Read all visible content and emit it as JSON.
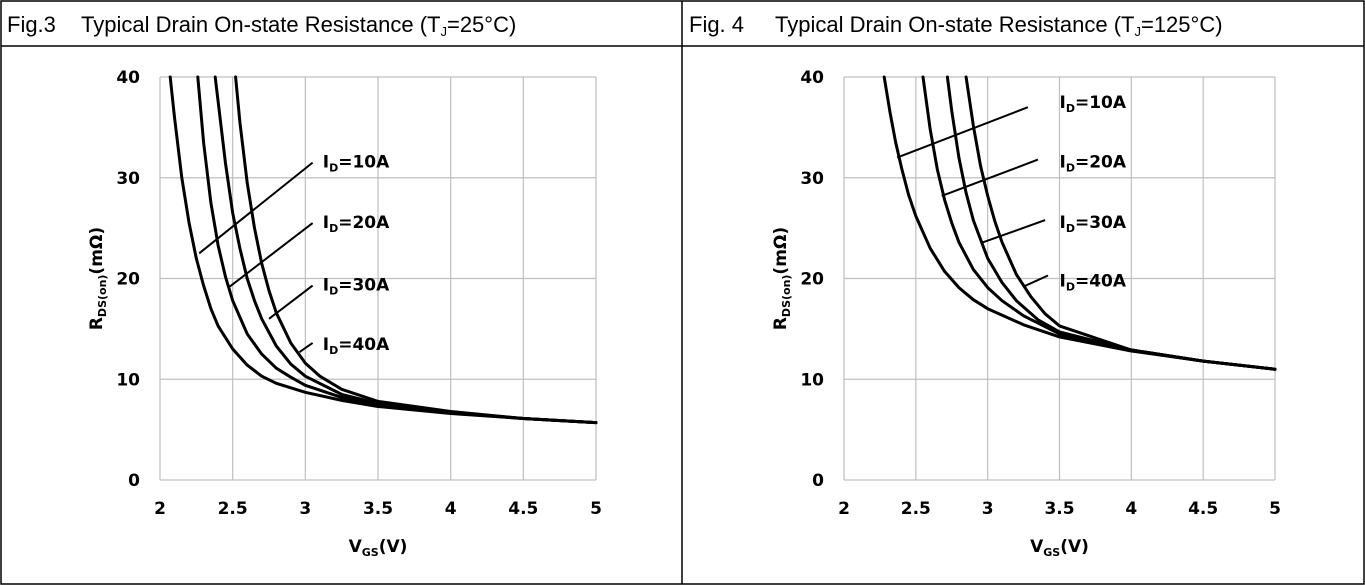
{
  "chart_data": [
    {
      "type": "line",
      "title": "Typical Drain On-state Resistance (T",
      "title_sub": "J",
      "title_tail": "=25°C)",
      "fig_label": "Fig.3",
      "xlabel": "V",
      "xlabel_sub": "GS",
      "xlabel_tail": "(V)",
      "ylabel": "R",
      "ylabel_sub": "DS(on)",
      "ylabel_tail": "(mΩ)",
      "xlim": [
        2,
        5
      ],
      "ylim": [
        0,
        40
      ],
      "x_ticks": [
        "2",
        "2.5",
        "3",
        "3.5",
        "4",
        "4.5",
        "5"
      ],
      "y_ticks": [
        "0",
        "10",
        "20",
        "30",
        "40"
      ],
      "grid": true,
      "line_color": "#000000",
      "grid_color": "#bfbfbf",
      "series": [
        {
          "name": "I_D=10A",
          "label": "I",
          "label_sub": "D",
          "label_tail": "=10A",
          "x": [
            2.07,
            2.1,
            2.15,
            2.2,
            2.25,
            2.3,
            2.35,
            2.4,
            2.5,
            2.6,
            2.7,
            2.8,
            3.0,
            3.25,
            3.5,
            4.0,
            4.5,
            5.0
          ],
          "y": [
            40,
            36,
            30,
            25.5,
            22,
            19.3,
            17,
            15.3,
            13,
            11.4,
            10.3,
            9.6,
            8.7,
            7.9,
            7.3,
            6.6,
            6.1,
            5.7
          ]
        },
        {
          "name": "I_D=20A",
          "label": "I",
          "label_sub": "D",
          "label_tail": "=20A",
          "x": [
            2.26,
            2.3,
            2.35,
            2.4,
            2.45,
            2.5,
            2.6,
            2.7,
            2.8,
            2.9,
            3.0,
            3.25,
            3.5,
            4.0,
            4.5,
            5.0
          ],
          "y": [
            40,
            33.5,
            27.5,
            23.3,
            20.2,
            17.8,
            14.5,
            12.5,
            11.1,
            10.2,
            9.4,
            8.2,
            7.5,
            6.7,
            6.1,
            5.7
          ]
        },
        {
          "name": "I_D=30A",
          "label": "I",
          "label_sub": "D",
          "label_tail": "=30A",
          "x": [
            2.38,
            2.45,
            2.5,
            2.55,
            2.6,
            2.65,
            2.7,
            2.8,
            2.9,
            3.0,
            3.25,
            3.5,
            4.0,
            4.5,
            5.0
          ],
          "y": [
            40,
            31.5,
            26.5,
            23,
            20,
            17.8,
            16,
            13.3,
            11.5,
            10.3,
            8.5,
            7.6,
            6.7,
            6.1,
            5.7
          ]
        },
        {
          "name": "I_D=40A",
          "label": "I",
          "label_sub": "D",
          "label_tail": "=40A",
          "x": [
            2.52,
            2.55,
            2.6,
            2.65,
            2.7,
            2.75,
            2.8,
            2.9,
            3.0,
            3.1,
            3.25,
            3.5,
            4.0,
            4.5,
            5.0
          ],
          "y": [
            40,
            35.5,
            29.5,
            25,
            21.5,
            18.8,
            16.6,
            13.6,
            11.6,
            10.3,
            9.0,
            7.8,
            6.8,
            6.1,
            5.7
          ]
        }
      ],
      "annotations": [
        {
          "series": 0,
          "line_from": [
            2.27,
            22.5
          ],
          "line_to": [
            3.05,
            31.5
          ],
          "label_at": [
            3.12,
            31.6
          ]
        },
        {
          "series": 1,
          "line_from": [
            2.48,
            19.2
          ],
          "line_to": [
            3.05,
            25.5
          ],
          "label_at": [
            3.12,
            25.6
          ]
        },
        {
          "series": 2,
          "line_from": [
            2.75,
            16.0
          ],
          "line_to": [
            3.05,
            19.3
          ],
          "label_at": [
            3.12,
            19.4
          ]
        },
        {
          "series": 3,
          "line_from": [
            2.96,
            12.7
          ],
          "line_to": [
            3.05,
            13.6
          ],
          "label_at": [
            3.12,
            13.5
          ]
        }
      ]
    },
    {
      "type": "line",
      "title": "Typical Drain On-state Resistance (T",
      "title_sub": "J",
      "title_tail": "=125°C)",
      "fig_label": "Fig. 4",
      "xlabel": "V",
      "xlabel_sub": "GS",
      "xlabel_tail": "(V)",
      "ylabel": "R",
      "ylabel_sub": "DS(on)",
      "ylabel_tail": "(mΩ)",
      "xlim": [
        2,
        5
      ],
      "ylim": [
        0,
        40
      ],
      "x_ticks": [
        "2",
        "2.5",
        "3",
        "3.5",
        "4",
        "4.5",
        "5"
      ],
      "y_ticks": [
        "0",
        "10",
        "20",
        "30",
        "40"
      ],
      "grid": true,
      "line_color": "#000000",
      "grid_color": "#bfbfbf",
      "series": [
        {
          "name": "I_D=10A",
          "label": "I",
          "label_sub": "D",
          "label_tail": "=10A",
          "x": [
            2.28,
            2.32,
            2.36,
            2.4,
            2.45,
            2.5,
            2.6,
            2.7,
            2.8,
            2.9,
            3.0,
            3.25,
            3.5,
            4.0,
            4.5,
            5.0
          ],
          "y": [
            40,
            36.5,
            33.5,
            31,
            28.3,
            26.2,
            23,
            20.7,
            19.1,
            17.9,
            17,
            15.4,
            14.2,
            12.8,
            11.8,
            11
          ]
        },
        {
          "name": "I_D=20A",
          "label": "I",
          "label_sub": "D",
          "label_tail": "=20A",
          "x": [
            2.55,
            2.6,
            2.65,
            2.7,
            2.75,
            2.8,
            2.9,
            3.0,
            3.1,
            3.25,
            3.5,
            4.0,
            4.5,
            5.0
          ],
          "y": [
            40,
            34.8,
            30.8,
            27.8,
            25.5,
            23.6,
            20.9,
            19.1,
            17.8,
            16.3,
            14.5,
            12.9,
            11.8,
            11
          ]
        },
        {
          "name": "I_D=30A",
          "label": "I",
          "label_sub": "D",
          "label_tail": "=30A",
          "x": [
            2.72,
            2.75,
            2.8,
            2.85,
            2.9,
            3.0,
            3.1,
            3.2,
            3.35,
            3.5,
            4.0,
            4.5,
            5.0
          ],
          "y": [
            40,
            36.6,
            32,
            28.5,
            25.8,
            22,
            19.6,
            17.8,
            15.9,
            14.7,
            12.9,
            11.8,
            11
          ]
        },
        {
          "name": "I_D=40A",
          "label": "I",
          "label_sub": "D",
          "label_tail": "=40A",
          "x": [
            2.85,
            2.9,
            2.95,
            3.0,
            3.05,
            3.1,
            3.2,
            3.3,
            3.4,
            3.5,
            4.0,
            4.5,
            5.0
          ],
          "y": [
            40,
            35.2,
            31.2,
            28.2,
            25.7,
            23.6,
            20.4,
            18.2,
            16.5,
            15.3,
            12.9,
            11.8,
            11
          ]
        }
      ],
      "annotations": [
        {
          "series": 0,
          "line_from": [
            2.37,
            32.0
          ],
          "line_to": [
            3.28,
            37.0
          ],
          "label_at": [
            3.5,
            37.5
          ]
        },
        {
          "series": 1,
          "line_from": [
            2.68,
            28.2
          ],
          "line_to": [
            3.35,
            31.8
          ],
          "label_at": [
            3.5,
            31.6
          ]
        },
        {
          "series": 2,
          "line_from": [
            2.95,
            23.5
          ],
          "line_to": [
            3.4,
            25.8
          ],
          "label_at": [
            3.5,
            25.6
          ]
        },
        {
          "series": 3,
          "line_from": [
            3.25,
            19.2
          ],
          "line_to": [
            3.42,
            20.3
          ],
          "label_at": [
            3.5,
            19.8
          ]
        }
      ]
    }
  ]
}
